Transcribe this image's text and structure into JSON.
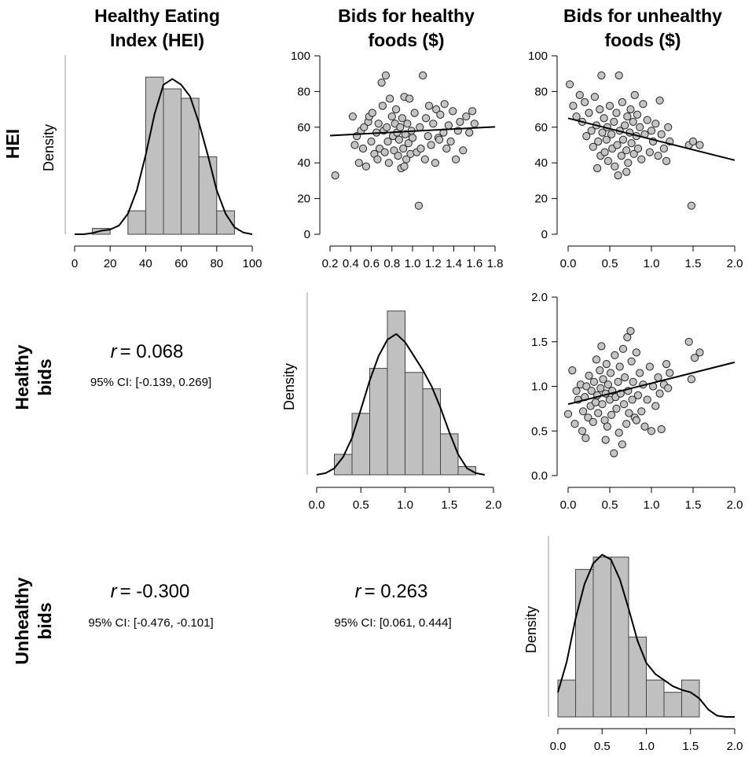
{
  "columns": [
    "Healthy Eating|Index (HEI)",
    "Bids for healthy|foods ($)",
    "Bids for unhealthy|foods ($)"
  ],
  "rows": [
    "HEI",
    "Healthy|bids",
    "Unhealthy|bids"
  ],
  "density_label": "Density",
  "correlations": [
    {
      "r_label": "r",
      "r_value": "= 0.068",
      "ci": "95% CI: [-0.139, 0.269]"
    },
    {
      "r_label": "r",
      "r_value": "= -0.300",
      "ci": "95% CI: [-0.476, -0.101]"
    },
    {
      "r_label": "r",
      "r_value": "= 0.263",
      "ci": "95% CI: [0.061, 0.444]"
    }
  ],
  "chart_data": [
    {
      "id": "hei-hist",
      "type": "bar",
      "title": "",
      "xlabel": "",
      "ylabel": "Density",
      "xlim": [
        0,
        100
      ],
      "xticks": [
        "0",
        "20",
        "40",
        "60",
        "80",
        "100"
      ],
      "bin_edges": [
        10,
        20,
        30,
        40,
        50,
        60,
        70,
        80,
        90
      ],
      "values": [
        0.001,
        0,
        0.004,
        0.0268,
        0.0248,
        0.0232,
        0.0132,
        0.004
      ],
      "ylim": [
        0,
        0.0295
      ],
      "density_curve": [
        [
          0,
          0
        ],
        [
          5,
          0
        ],
        [
          10,
          0.0002
        ],
        [
          15,
          0.0006
        ],
        [
          20,
          0.0008
        ],
        [
          25,
          0.0015
        ],
        [
          30,
          0.0035
        ],
        [
          35,
          0.0075
        ],
        [
          40,
          0.0135
        ],
        [
          45,
          0.0205
        ],
        [
          50,
          0.0255
        ],
        [
          55,
          0.0265
        ],
        [
          60,
          0.0255
        ],
        [
          65,
          0.0235
        ],
        [
          70,
          0.019
        ],
        [
          75,
          0.0135
        ],
        [
          80,
          0.0075
        ],
        [
          85,
          0.0035
        ],
        [
          90,
          0.0012
        ],
        [
          95,
          0.0003
        ],
        [
          100,
          0
        ]
      ]
    },
    {
      "id": "hei-vs-healthy",
      "type": "scatter",
      "title": "",
      "xlabel": "",
      "ylabel": "",
      "xlim": [
        0.2,
        1.8
      ],
      "ylim": [
        0,
        100
      ],
      "xticks": [
        "0.2",
        "0.4",
        "0.6",
        "0.8",
        "1.0",
        "1.2",
        "1.4",
        "1.6",
        "1.8"
      ],
      "yticks": [
        "0",
        "20",
        "40",
        "60",
        "80",
        "100"
      ],
      "trend": [
        [
          0.2,
          55.3
        ],
        [
          1.8,
          60.2
        ]
      ],
      "points": [
        [
          0.25,
          33
        ],
        [
          0.42,
          66
        ],
        [
          0.44,
          50
        ],
        [
          0.46,
          55
        ],
        [
          0.48,
          40
        ],
        [
          0.5,
          58
        ],
        [
          0.52,
          48
        ],
        [
          0.53,
          60
        ],
        [
          0.55,
          38
        ],
        [
          0.57,
          63
        ],
        [
          0.58,
          66
        ],
        [
          0.6,
          52
        ],
        [
          0.61,
          68
        ],
        [
          0.63,
          45
        ],
        [
          0.65,
          57
        ],
        [
          0.66,
          42
        ],
        [
          0.67,
          62
        ],
        [
          0.68,
          48
        ],
        [
          0.7,
          85
        ],
        [
          0.71,
          72
        ],
        [
          0.72,
          58
        ],
        [
          0.73,
          46
        ],
        [
          0.74,
          89
        ],
        [
          0.75,
          60
        ],
        [
          0.76,
          52
        ],
        [
          0.77,
          40
        ],
        [
          0.78,
          76
        ],
        [
          0.8,
          66
        ],
        [
          0.81,
          55
        ],
        [
          0.82,
          47
        ],
        [
          0.83,
          62
        ],
        [
          0.84,
          70
        ],
        [
          0.85,
          57
        ],
        [
          0.86,
          44
        ],
        [
          0.87,
          53
        ],
        [
          0.88,
          60
        ],
        [
          0.89,
          37
        ],
        [
          0.9,
          65
        ],
        [
          0.91,
          48
        ],
        [
          0.92,
          77
        ],
        [
          0.93,
          56
        ],
        [
          0.94,
          42
        ],
        [
          0.95,
          62
        ],
        [
          0.96,
          51
        ],
        [
          0.97,
          76
        ],
        [
          0.98,
          45
        ],
        [
          0.99,
          58
        ],
        [
          1.0,
          54
        ],
        [
          1.02,
          68
        ],
        [
          1.04,
          46
        ],
        [
          1.06,
          16
        ],
        [
          1.07,
          60
        ],
        [
          1.08,
          48
        ],
        [
          1.1,
          89
        ],
        [
          1.12,
          42
        ],
        [
          1.13,
          65
        ],
        [
          1.15,
          55
        ],
        [
          1.16,
          72
        ],
        [
          1.18,
          50
        ],
        [
          1.2,
          62
        ],
        [
          1.22,
          40
        ],
        [
          1.23,
          70
        ],
        [
          1.25,
          54
        ],
        [
          1.27,
          67
        ],
        [
          1.3,
          57
        ],
        [
          1.31,
          73
        ],
        [
          1.33,
          48
        ],
        [
          1.35,
          61
        ],
        [
          1.37,
          52
        ],
        [
          1.39,
          69
        ],
        [
          1.42,
          42
        ],
        [
          1.44,
          58
        ],
        [
          1.46,
          63
        ],
        [
          1.49,
          47
        ],
        [
          1.52,
          66
        ],
        [
          1.55,
          57
        ],
        [
          1.58,
          69
        ],
        [
          1.6,
          62
        ],
        [
          0.92,
          38
        ],
        [
          1.26,
          53
        ]
      ]
    },
    {
      "id": "hei-vs-unhealthy",
      "type": "scatter",
      "title": "",
      "xlabel": "",
      "ylabel": "",
      "xlim": [
        0,
        2
      ],
      "ylim": [
        0,
        100
      ],
      "xticks": [
        "0.0",
        "0.5",
        "1.0",
        "1.5",
        "2.0"
      ],
      "yticks": [
        "0",
        "20",
        "40",
        "60",
        "80",
        "100"
      ],
      "trend": [
        [
          0,
          65
        ],
        [
          2,
          41.5
        ]
      ],
      "points": [
        [
          0.02,
          84
        ],
        [
          0.06,
          72
        ],
        [
          0.1,
          66
        ],
        [
          0.14,
          78
        ],
        [
          0.17,
          63
        ],
        [
          0.2,
          74
        ],
        [
          0.22,
          55
        ],
        [
          0.25,
          68
        ],
        [
          0.28,
          58
        ],
        [
          0.3,
          49
        ],
        [
          0.32,
          77
        ],
        [
          0.34,
          61
        ],
        [
          0.36,
          52
        ],
        [
          0.38,
          70
        ],
        [
          0.39,
          44
        ],
        [
          0.4,
          89
        ],
        [
          0.41,
          57
        ],
        [
          0.43,
          65
        ],
        [
          0.44,
          46
        ],
        [
          0.46,
          53
        ],
        [
          0.47,
          60
        ],
        [
          0.48,
          41
        ],
        [
          0.5,
          72
        ],
        [
          0.52,
          56
        ],
        [
          0.53,
          48
        ],
        [
          0.55,
          63
        ],
        [
          0.56,
          38
        ],
        [
          0.58,
          68
        ],
        [
          0.59,
          50
        ],
        [
          0.6,
          33
        ],
        [
          0.61,
          89
        ],
        [
          0.62,
          58
        ],
        [
          0.64,
          44
        ],
        [
          0.65,
          74
        ],
        [
          0.66,
          53
        ],
        [
          0.68,
          61
        ],
        [
          0.7,
          47
        ],
        [
          0.71,
          66
        ],
        [
          0.72,
          40
        ],
        [
          0.74,
          57
        ],
        [
          0.75,
          70
        ],
        [
          0.76,
          51
        ],
        [
          0.78,
          63
        ],
        [
          0.79,
          45
        ],
        [
          0.8,
          78
        ],
        [
          0.82,
          55
        ],
        [
          0.83,
          67
        ],
        [
          0.84,
          48
        ],
        [
          0.86,
          60
        ],
        [
          0.88,
          42
        ],
        [
          0.9,
          73
        ],
        [
          0.92,
          56
        ],
        [
          0.95,
          64
        ],
        [
          0.98,
          46
        ],
        [
          1.0,
          58
        ],
        [
          1.02,
          52
        ],
        [
          1.05,
          62
        ],
        [
          1.08,
          44
        ],
        [
          1.1,
          75
        ],
        [
          1.12,
          56
        ],
        [
          1.15,
          48
        ],
        [
          1.18,
          41
        ],
        [
          1.2,
          60
        ],
        [
          1.22,
          52
        ],
        [
          1.45,
          50
        ],
        [
          1.48,
          16
        ],
        [
          1.5,
          52
        ],
        [
          1.58,
          50
        ],
        [
          0.35,
          37
        ],
        [
          0.7,
          35
        ]
      ]
    },
    {
      "id": "healthy-hist",
      "type": "bar",
      "title": "",
      "xlabel": "",
      "ylabel": "Density",
      "xlim": [
        0,
        2
      ],
      "xticks": [
        "0.0",
        "0.5",
        "1.0",
        "1.5",
        "2.0"
      ],
      "bin_edges": [
        0.2,
        0.4,
        0.6,
        0.8,
        1.0,
        1.2,
        1.4,
        1.6,
        1.8
      ],
      "values": [
        0.25,
        0.75,
        1.3,
        2.0,
        1.25,
        1.05,
        0.5,
        0.1
      ],
      "ylim": [
        0,
        2.15
      ],
      "density_curve": [
        [
          0,
          0
        ],
        [
          0.1,
          0.02
        ],
        [
          0.2,
          0.08
        ],
        [
          0.3,
          0.22
        ],
        [
          0.4,
          0.45
        ],
        [
          0.5,
          0.8
        ],
        [
          0.6,
          1.15
        ],
        [
          0.7,
          1.45
        ],
        [
          0.8,
          1.65
        ],
        [
          0.9,
          1.72
        ],
        [
          1.0,
          1.62
        ],
        [
          1.1,
          1.45
        ],
        [
          1.2,
          1.28
        ],
        [
          1.3,
          1.08
        ],
        [
          1.4,
          0.82
        ],
        [
          1.5,
          0.52
        ],
        [
          1.6,
          0.25
        ],
        [
          1.7,
          0.08
        ],
        [
          1.8,
          0.02
        ],
        [
          1.9,
          0
        ]
      ]
    },
    {
      "id": "healthy-vs-unhealthy",
      "type": "scatter",
      "title": "",
      "xlabel": "",
      "ylabel": "",
      "xlim": [
        0,
        2
      ],
      "ylim": [
        0,
        2
      ],
      "xticks": [
        "0.0",
        "0.5",
        "1.0",
        "1.5",
        "2.0"
      ],
      "yticks": [
        "0.0",
        "0.5",
        "1.0",
        "1.5",
        "2.0"
      ],
      "trend": [
        [
          0,
          0.8
        ],
        [
          2,
          1.27
        ]
      ],
      "points": [
        [
          0.0,
          0.69
        ],
        [
          0.05,
          1.18
        ],
        [
          0.08,
          0.58
        ],
        [
          0.1,
          0.95
        ],
        [
          0.12,
          0.85
        ],
        [
          0.15,
          1.02
        ],
        [
          0.17,
          0.5
        ],
        [
          0.18,
          0.72
        ],
        [
          0.2,
          0.88
        ],
        [
          0.21,
          0.42
        ],
        [
          0.22,
          1.0
        ],
        [
          0.24,
          0.65
        ],
        [
          0.25,
          1.12
        ],
        [
          0.27,
          0.78
        ],
        [
          0.28,
          0.95
        ],
        [
          0.3,
          0.6
        ],
        [
          0.31,
          1.05
        ],
        [
          0.33,
          0.82
        ],
        [
          0.34,
          1.3
        ],
        [
          0.35,
          0.9
        ],
        [
          0.36,
          0.7
        ],
        [
          0.38,
          1.18
        ],
        [
          0.39,
          0.98
        ],
        [
          0.4,
          1.45
        ],
        [
          0.41,
          0.8
        ],
        [
          0.42,
          1.08
        ],
        [
          0.44,
          0.62
        ],
        [
          0.45,
          0.92
        ],
        [
          0.46,
          1.25
        ],
        [
          0.47,
          0.55
        ],
        [
          0.48,
          1.02
        ],
        [
          0.5,
          0.85
        ],
        [
          0.51,
          1.15
        ],
        [
          0.52,
          0.68
        ],
        [
          0.53,
          0.95
        ],
        [
          0.55,
          0.25
        ],
        [
          0.56,
          1.35
        ],
        [
          0.57,
          0.88
        ],
        [
          0.58,
          0.75
        ],
        [
          0.6,
          1.05
        ],
        [
          0.61,
          0.48
        ],
        [
          0.62,
          1.22
        ],
        [
          0.63,
          0.92
        ],
        [
          0.65,
          0.35
        ],
        [
          0.66,
          1.42
        ],
        [
          0.67,
          0.8
        ],
        [
          0.68,
          1.1
        ],
        [
          0.7,
          0.58
        ],
        [
          0.71,
          1.55
        ],
        [
          0.72,
          0.95
        ],
        [
          0.73,
          0.7
        ],
        [
          0.75,
          1.62
        ],
        [
          0.76,
          1.28
        ],
        [
          0.77,
          0.85
        ],
        [
          0.78,
          1.05
        ],
        [
          0.8,
          0.65
        ],
        [
          0.82,
          1.38
        ],
        [
          0.84,
          0.9
        ],
        [
          0.86,
          1.15
        ],
        [
          0.88,
          0.72
        ],
        [
          0.9,
          1.02
        ],
        [
          0.92,
          0.55
        ],
        [
          0.95,
          0.85
        ],
        [
          0.98,
          1.22
        ],
        [
          1.0,
          0.5
        ],
        [
          1.02,
          1.0
        ],
        [
          1.05,
          0.78
        ],
        [
          1.08,
          1.1
        ],
        [
          1.1,
          0.92
        ],
        [
          1.12,
          0.52
        ],
        [
          1.15,
          1.02
        ],
        [
          1.18,
          1.25
        ],
        [
          1.2,
          0.98
        ],
        [
          1.22,
          1.15
        ],
        [
          1.45,
          1.5
        ],
        [
          1.48,
          1.08
        ],
        [
          1.52,
          1.32
        ],
        [
          1.58,
          1.38
        ],
        [
          0.45,
          0.4
        ],
        [
          0.82,
          0.62
        ]
      ]
    },
    {
      "id": "unhealthy-hist",
      "type": "bar",
      "title": "",
      "xlabel": "",
      "ylabel": "Density",
      "xlim": [
        0,
        2
      ],
      "xticks": [
        "0.0",
        "0.5",
        "1.0",
        "1.5",
        "2.0"
      ],
      "bin_edges": [
        0.0,
        0.2,
        0.4,
        0.6,
        0.8,
        1.0,
        1.2,
        1.4,
        1.6
      ],
      "values": [
        0.3,
        1.2,
        1.3,
        1.3,
        0.65,
        0.3,
        0.2,
        0.3
      ],
      "ylim": [
        0,
        1.42
      ],
      "density_curve": [
        [
          0,
          0.2
        ],
        [
          0.1,
          0.45
        ],
        [
          0.2,
          0.8
        ],
        [
          0.3,
          1.08
        ],
        [
          0.4,
          1.25
        ],
        [
          0.5,
          1.32
        ],
        [
          0.6,
          1.28
        ],
        [
          0.7,
          1.12
        ],
        [
          0.8,
          0.88
        ],
        [
          0.9,
          0.62
        ],
        [
          1.0,
          0.44
        ],
        [
          1.1,
          0.35
        ],
        [
          1.2,
          0.3
        ],
        [
          1.3,
          0.25
        ],
        [
          1.4,
          0.22
        ],
        [
          1.5,
          0.2
        ],
        [
          1.6,
          0.15
        ],
        [
          1.7,
          0.06
        ],
        [
          1.8,
          0.01
        ],
        [
          1.9,
          0
        ],
        [
          2.0,
          0
        ]
      ]
    }
  ]
}
